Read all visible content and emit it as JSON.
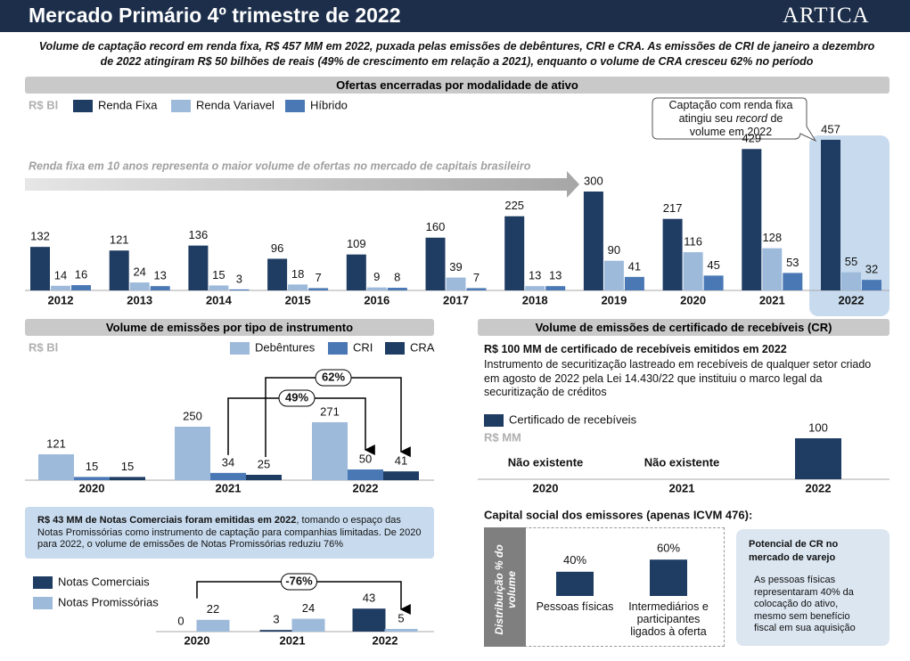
{
  "header": {
    "title": "Mercado Primário 4º trimestre de 2022",
    "logo": "ARTICA"
  },
  "intro": "Volume de captação record em renda fixa, R$ 457 MM em 2022, puxada pelas emissões de debêntures, CRI e CRA. As emissões de CRI de janeiro a dezembro de 2022 atingiram R$ 50 bilhões de reais (49% de crescimento em relação a 2021), enquanto o volume de CRA cresceu 62% no período",
  "chart_data": [
    {
      "type": "bar",
      "title": "Ofertas encerradas por modalidade de ativo",
      "unit": "R$ Bl",
      "categories": [
        "2012",
        "2013",
        "2014",
        "2015",
        "2016",
        "2017",
        "2018",
        "2019",
        "2020",
        "2021",
        "2022"
      ],
      "series": [
        {
          "name": "Renda Fixa",
          "color": "#1f3c63",
          "values": [
            132,
            121,
            136,
            96,
            109,
            160,
            225,
            300,
            217,
            429,
            457
          ]
        },
        {
          "name": "Renda Variavel",
          "color": "#9dbadb",
          "values": [
            14,
            24,
            15,
            18,
            9,
            39,
            13,
            90,
            116,
            128,
            55
          ]
        },
        {
          "name": "Híbrido",
          "color": "#4a78b5",
          "values": [
            16,
            13,
            3,
            7,
            8,
            7,
            13,
            41,
            45,
            53,
            32
          ]
        }
      ],
      "annotation": "Renda fixa em 10 anos representa o maior volume de ofertas no mercado de capitais brasileiro",
      "callout": {
        "before": "Captação com renda fixa atingiu seu",
        "emphasis": "record",
        "after": "de volume em 2022"
      }
    },
    {
      "type": "bar",
      "title": "Volume de emissões por tipo de instrumento",
      "unit": "R$ Bl",
      "categories": [
        "2020",
        "2021",
        "2022"
      ],
      "series": [
        {
          "name": "Debêntures",
          "color": "#9dbadb",
          "values": [
            121,
            250,
            271
          ]
        },
        {
          "name": "CRI",
          "color": "#4a78b5",
          "values": [
            15,
            34,
            50
          ]
        },
        {
          "name": "CRA",
          "color": "#1f3c63",
          "values": [
            15,
            25,
            41
          ]
        }
      ],
      "cra_growth": "62%",
      "cri_growth": "49%"
    },
    {
      "type": "bar",
      "title": "Volume de emissões de certificado de recebíveis (CR)",
      "headline": "R$ 100 MM de certificado de recebíveis emitidos em 2022",
      "description": "Instrumento de securitização lastreado em recebíveis de qualquer setor criado em agosto de 2022 pela Lei 14.430/22 que instituiu o marco legal da securitização de créditos",
      "unit": "R$ MM",
      "categories": [
        "2020",
        "2021",
        "2022"
      ],
      "series": [
        {
          "name": "Certificado de recebíveis",
          "color": "#1f3c63",
          "values": [
            null,
            null,
            100
          ],
          "value_labels": [
            "Não existente",
            "Não existente",
            "100"
          ]
        }
      ]
    },
    {
      "type": "bar",
      "title": "Capital social dos emissores (apenas ICVM 476):",
      "ylabel": "Distribuição % do volume",
      "categories": [
        "Pessoas físicas",
        "Intermediários e participantes ligados à oferta"
      ],
      "values": [
        40,
        60
      ],
      "value_labels": [
        "40%",
        "60%"
      ],
      "color": "#1f3c63",
      "side_note": {
        "title": "Potencial de CR no mercado de varejo",
        "text": "As pessoas físicas representaram 40% da colocação do ativo, mesmo sem benefício fiscal em sua aquisição"
      }
    },
    {
      "type": "bar",
      "note": {
        "emphasis": "R$ 43 MM de Notas Comerciais foram emitidas em 2022",
        "text": ", tomando o espaço das Notas Promissórias como instrumento de captação para companhias limitadas. De 2020 para 2022, o volume de emissões de Notas Promissórias reduziu 76%"
      },
      "categories": [
        "2020",
        "2021",
        "2022"
      ],
      "series": [
        {
          "name": "Notas Comerciais",
          "color": "#1f3c63",
          "values": [
            0,
            3,
            43
          ]
        },
        {
          "name": "Notas Promissórias",
          "color": "#9dbadb",
          "values": [
            22,
            24,
            5
          ]
        }
      ],
      "change_label": "-76%"
    }
  ]
}
